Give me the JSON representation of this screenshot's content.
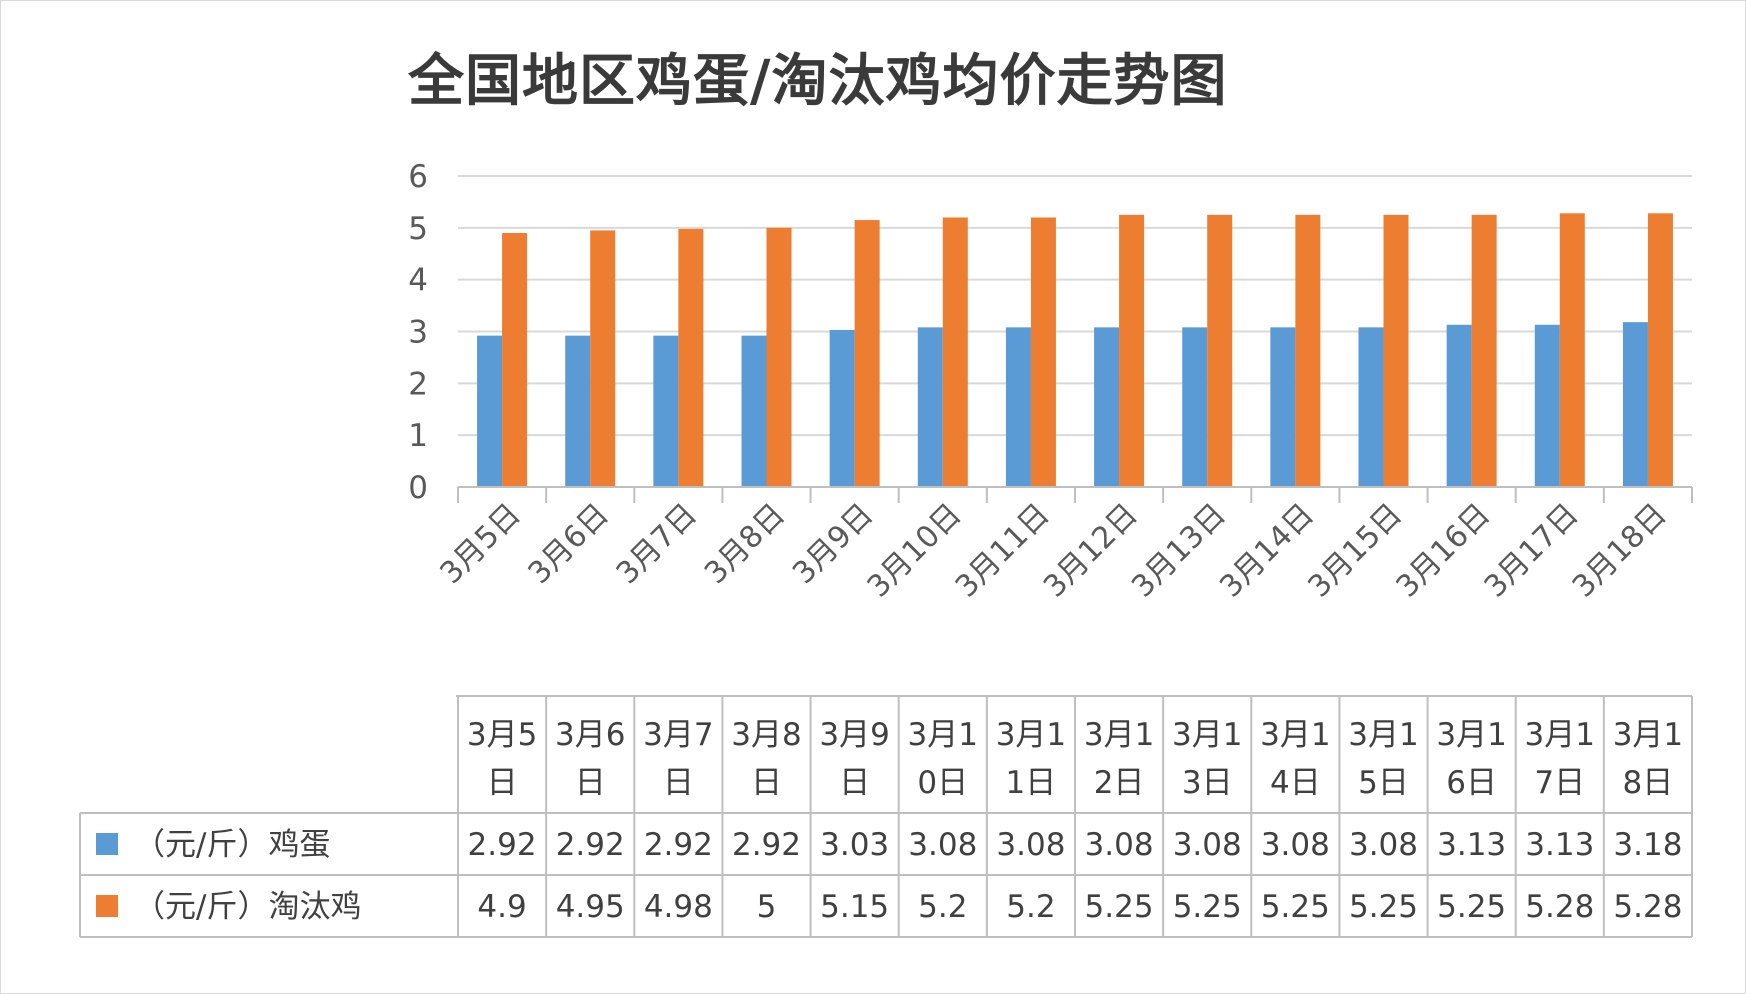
{
  "chart_data": {
    "type": "bar",
    "title": "全国地区鸡蛋/淘汰鸡均价走势图",
    "categories": [
      "3月5日",
      "3月6日",
      "3月7日",
      "3月8日",
      "3月9日",
      "3月10日",
      "3月11日",
      "3月12日",
      "3月13日",
      "3月14日",
      "3月15日",
      "3月16日",
      "3月17日",
      "3月18日"
    ],
    "table_headers": [
      [
        "3月5",
        "日"
      ],
      [
        "3月6",
        "日"
      ],
      [
        "3月7",
        "日"
      ],
      [
        "3月8",
        "日"
      ],
      [
        "3月9",
        "日"
      ],
      [
        "3月1",
        "0日"
      ],
      [
        "3月1",
        "1日"
      ],
      [
        "3月1",
        "2日"
      ],
      [
        "3月1",
        "3日"
      ],
      [
        "3月1",
        "4日"
      ],
      [
        "3月1",
        "5日"
      ],
      [
        "3月1",
        "6日"
      ],
      [
        "3月1",
        "7日"
      ],
      [
        "3月1",
        "8日"
      ]
    ],
    "series": [
      {
        "name": "（元/斤）鸡蛋",
        "color": "#5b9bd5",
        "values": [
          2.92,
          2.92,
          2.92,
          2.92,
          3.03,
          3.08,
          3.08,
          3.08,
          3.08,
          3.08,
          3.08,
          3.13,
          3.13,
          3.18
        ]
      },
      {
        "name": "（元/斤）淘汰鸡",
        "color": "#ed7d31",
        "values": [
          4.9,
          4.95,
          4.98,
          5,
          5.15,
          5.2,
          5.2,
          5.25,
          5.25,
          5.25,
          5.25,
          5.25,
          5.28,
          5.28
        ]
      }
    ],
    "value_labels": [
      [
        "2.92",
        "2.92",
        "2.92",
        "2.92",
        "3.03",
        "3.08",
        "3.08",
        "3.08",
        "3.08",
        "3.08",
        "3.08",
        "3.13",
        "3.13",
        "3.18"
      ],
      [
        "4.9",
        "4.95",
        "4.98",
        "5",
        "5.15",
        "5.2",
        "5.2",
        "5.25",
        "5.25",
        "5.25",
        "5.25",
        "5.25",
        "5.28",
        "5.28"
      ]
    ],
    "ylim": [
      0,
      6
    ],
    "yticks": [
      "0",
      "1",
      "2",
      "3",
      "4",
      "5",
      "6"
    ],
    "grid": true,
    "legend": "data-table"
  }
}
